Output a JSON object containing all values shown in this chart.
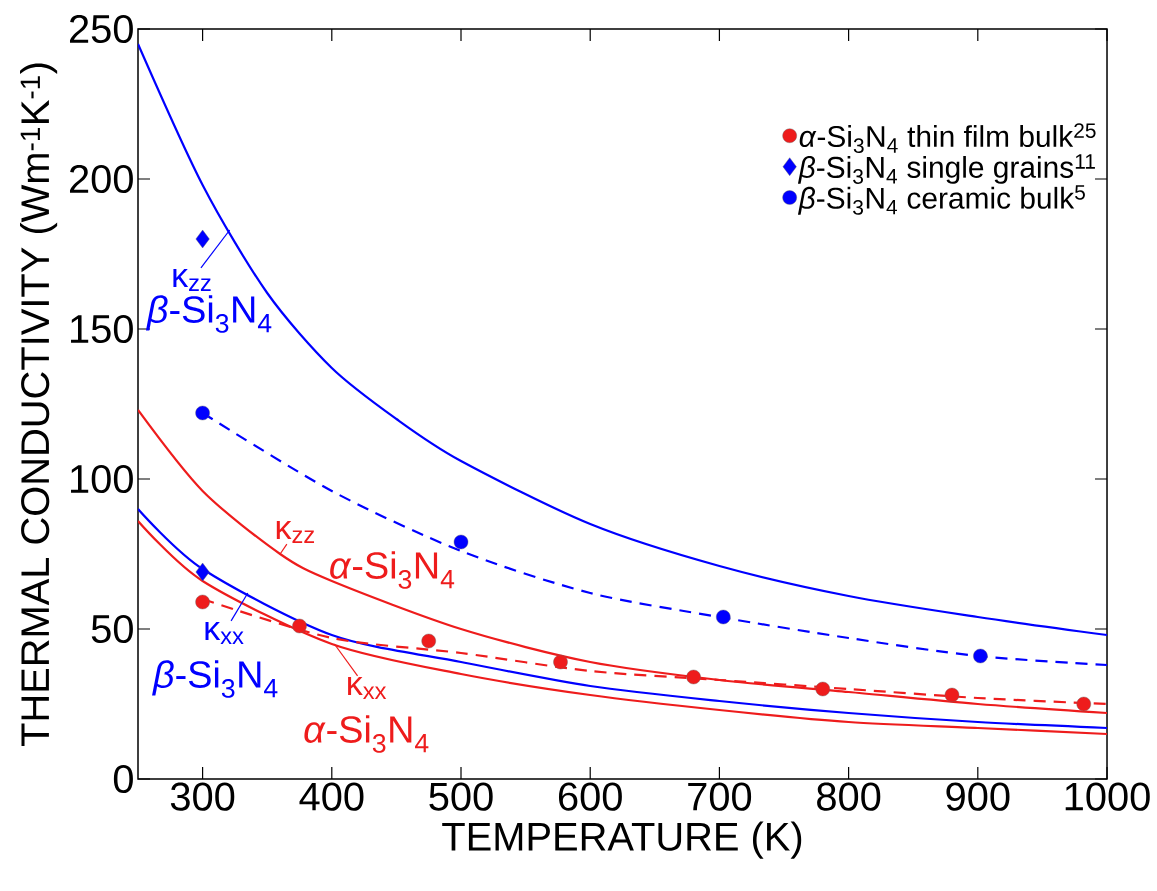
{
  "chart_data": {
    "type": "line",
    "xlabel": "TEMPERATURE (K)",
    "ylabel": "THERMAL CONDUCTIVITY (Wm$^{-1}$K$^{-1}$)",
    "xlim": [
      250,
      1000
    ],
    "ylim": [
      0,
      250
    ],
    "xticks": [
      300,
      400,
      500,
      600,
      700,
      800,
      900,
      1000
    ],
    "yticks": [
      0,
      50,
      100,
      150,
      200,
      250
    ],
    "grid": false,
    "legend": "top right",
    "series": [
      {
        "color": "#0000ff",
        "line_style": "solid",
        "x": [
          250,
          300,
          350,
          400,
          450,
          500,
          600,
          700,
          800,
          900,
          1000
        ],
        "values": [
          245,
          198,
          162,
          137,
          120,
          106,
          85,
          71,
          61,
          54,
          48
        ]
      },
      {
        "color": "#ee1c1c",
        "line_style": "solid",
        "x": [
          250,
          300,
          360,
          400,
          500,
          600,
          700,
          800,
          900,
          1000
        ],
        "values": [
          123,
          96,
          75,
          66,
          50,
          39,
          33,
          29,
          25,
          22
        ]
      },
      {
        "color": "#0000ff",
        "line_style": "solid",
        "x": [
          250,
          300,
          400,
          500,
          600,
          700,
          800,
          900,
          1000
        ],
        "values": [
          90,
          70,
          48,
          39,
          31,
          26,
          22,
          19,
          17
        ]
      },
      {
        "color": "#ee1c1c",
        "line_style": "solid",
        "x": [
          250,
          300,
          400,
          500,
          600,
          700,
          800,
          900,
          1000
        ],
        "values": [
          86,
          66,
          45,
          35,
          28,
          23,
          19,
          17,
          15
        ]
      },
      {
        "color": "#0000ff",
        "line_style": "dashed",
        "x": [
          300,
          400,
          500,
          600,
          700,
          800,
          900,
          1000
        ],
        "values": [
          122,
          96,
          76,
          62,
          54,
          47,
          41,
          38
        ]
      },
      {
        "color": "#ee1c1c",
        "line_style": "dashed",
        "x": [
          300,
          400,
          500,
          600,
          700,
          800,
          900,
          1000
        ],
        "values": [
          60,
          47,
          42,
          36,
          33,
          30,
          27,
          25
        ]
      },
      {
        "type": "scatter",
        "name": "*α*-Si$_{3}$N$_{4}$ thin film bulk$^{25}$",
        "color": "#ee1c1c",
        "marker": "circle",
        "x": [
          300,
          375,
          475,
          577,
          680,
          780,
          880,
          982
        ],
        "values": [
          59,
          51,
          46,
          39,
          34,
          30,
          28,
          25
        ]
      },
      {
        "type": "scatter",
        "name": "*β*-Si$_{3}$N$_{4}$ single grains$^{11}$",
        "color": "#0000ff",
        "marker": "diamond",
        "x": [
          300,
          300
        ],
        "values": [
          180,
          69
        ]
      },
      {
        "type": "scatter",
        "name": "*β*-Si$_{3}$N$_{4}$ ceramic bulk$^{5}$",
        "color": "#0000ff",
        "marker": "circle",
        "x": [
          300,
          500,
          703,
          902
        ],
        "values": [
          122,
          79,
          54,
          41
        ]
      }
    ],
    "annotations": [
      {
        "text": "κ$_{zz}$",
        "x": 321,
        "y": 183
      },
      {
        "text": "*β*-Si$_{3}$N$_{4}$",
        "x": 321,
        "y": 183
      },
      {
        "text": "κ$_{zz}$",
        "x": 360,
        "y": 75
      },
      {
        "text": "*α*-Si$_{3}$N$_{4}$",
        "x": 360,
        "y": 75
      },
      {
        "text": "κ$_{xx}$",
        "x": 335,
        "y": 62
      },
      {
        "text": "*β*-Si$_{3}$N$_{4}$",
        "x": 335,
        "y": 62
      },
      {
        "text": "κ$_{xx}$",
        "x": 402,
        "y": 45
      },
      {
        "text": "*α*-Si$_{3}$N$_{4}$",
        "x": 402,
        "y": 45
      }
    ]
  }
}
